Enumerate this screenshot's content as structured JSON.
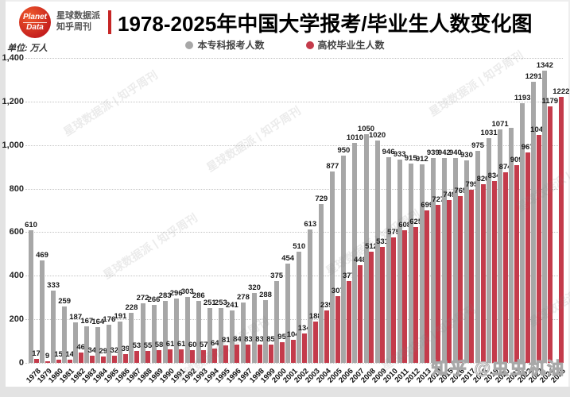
{
  "header": {
    "logo": {
      "line1": "Planet",
      "line2": "Data"
    },
    "brand": {
      "line1": "星球数据派",
      "line2": "知乎周刊"
    },
    "title": "1978-2025年中国大学报考/毕业生人数变化图"
  },
  "unit_label": "单位: 万人",
  "legend": [
    {
      "label": "本专科报考人数",
      "color": "#a7a7a7"
    },
    {
      "label": "高校毕业生人数",
      "color": "#c43b4b"
    }
  ],
  "watermarks": {
    "diagonal": "星球数据派 | 知乎周刊",
    "corner": "知乎 @虫虫机油"
  },
  "chart_data": {
    "type": "bar",
    "title": "1978-2025年中国大学报考/毕业生人数变化图",
    "unit": "万人",
    "ylim": [
      0,
      1400
    ],
    "yticks": [
      "0",
      "200",
      "400",
      "600",
      "800",
      "1,000",
      "1,200",
      "1,400"
    ],
    "grid": "dotted-horizontal",
    "legend_position": "top-center",
    "categories": [
      "1978",
      "1979",
      "1980",
      "1981",
      "1982",
      "1983",
      "1984",
      "1985",
      "1986",
      "1987",
      "1988",
      "1989",
      "1990",
      "1991",
      "1992",
      "1993",
      "1994",
      "1995",
      "1996",
      "1997",
      "1998",
      "1999",
      "2000",
      "2001",
      "2002",
      "2003",
      "2004",
      "2005",
      "2006",
      "2007",
      "2008",
      "2009",
      "2010",
      "2011",
      "2012",
      "2013",
      "2014",
      "2015",
      "2016",
      "2017",
      "2018",
      "2019",
      "2020",
      "2021",
      "2022",
      "2023",
      "2024",
      "2025"
    ],
    "series": [
      {
        "name": "本专科报考人数",
        "color": "#a7a7a7",
        "values": [
          610,
          469,
          333,
          259,
          187,
          167,
          164,
          176,
          191,
          228,
          272,
          266,
          283,
          296,
          303,
          286,
          251,
          253,
          241,
          278,
          320,
          288,
          375,
          454,
          510,
          613,
          729,
          877,
          950,
          1010,
          1050,
          1020,
          946,
          933,
          915,
          912,
          939,
          942,
          940,
          930,
          975,
          1031,
          1071,
          1078,
          1193,
          1291,
          1342,
          null
        ],
        "labels": [
          "610",
          "469",
          "333",
          "259",
          "187",
          "167",
          "164",
          "176",
          "191",
          "228",
          "272",
          "266",
          "283",
          "296",
          "303",
          "286",
          "251",
          "253",
          "241",
          "278",
          "320",
          "288",
          "375",
          "454",
          "510",
          "613",
          "729",
          "877",
          "950",
          "1010",
          "1050",
          "1020",
          "946",
          "933",
          "915",
          "912",
          "939",
          "942",
          "940",
          "930",
          "975",
          "1031",
          "1071",
          "",
          "1193",
          "1291",
          "1342",
          ""
        ]
      },
      {
        "name": "高校毕业生人数",
        "color": "#c43b4b",
        "values": [
          17,
          9,
          15,
          14,
          46,
          34,
          29,
          32,
          39,
          53,
          55,
          58,
          61,
          61,
          60,
          57,
          64,
          81,
          84,
          83,
          83,
          85,
          95,
          104,
          134,
          188,
          239,
          307,
          377,
          448,
          512,
          531,
          575,
          608,
          625,
          699,
          727,
          749,
          765,
          795,
          820,
          834,
          874,
          909,
          967,
          1047,
          1179,
          1222
        ],
        "labels": [
          "17",
          "9",
          "15",
          "14",
          "46",
          "34",
          "29",
          "32",
          "39",
          "53",
          "55",
          "58",
          "61",
          "61",
          "60",
          "57",
          "64",
          "81",
          "84",
          "83",
          "83",
          "85",
          "95",
          "104",
          "134",
          "188",
          "239",
          "307",
          "377",
          "448",
          "512",
          "531",
          "575",
          "608",
          "625",
          "699",
          "727",
          "749",
          "765",
          "795",
          "820",
          "834",
          "874",
          "909",
          "967",
          "1047",
          "1179",
          "1222"
        ]
      }
    ]
  }
}
